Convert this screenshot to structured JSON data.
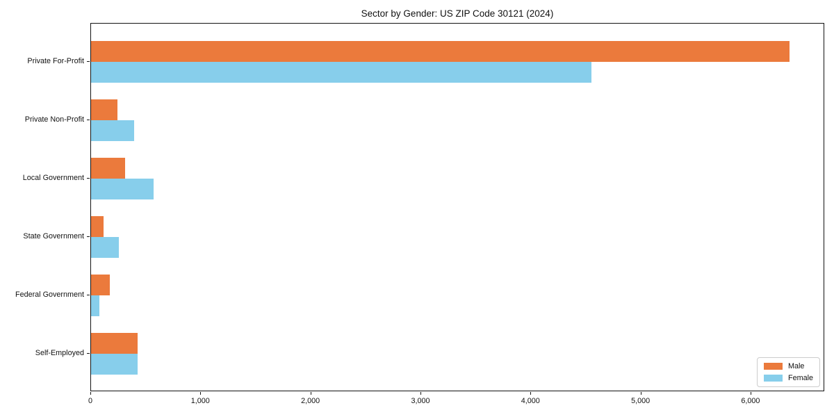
{
  "figure": {
    "background_color": "#ffffff",
    "text_color": "#111111"
  },
  "chart_data": {
    "type": "bar",
    "orientation": "horizontal",
    "title": "Sector by Gender: US ZIP Code 30121 (2024)",
    "categories": [
      "Private For-Profit",
      "Private Non-Profit",
      "Local Government",
      "State Government",
      "Federal Government",
      "Self-Employed"
    ],
    "series": [
      {
        "name": "Male",
        "color": "#EB7A3C",
        "values": [
          6350,
          240,
          310,
          115,
          170,
          420
        ]
      },
      {
        "name": "Female",
        "color": "#87CEEB",
        "values": [
          4550,
          390,
          570,
          255,
          75,
          425
        ]
      }
    ],
    "xlabel": "",
    "ylabel": "",
    "xlim": [
      0,
      6670
    ],
    "x_ticks": [
      0,
      1000,
      2000,
      3000,
      4000,
      5000,
      6000
    ],
    "x_tick_labels": [
      "0",
      "1,000",
      "2,000",
      "3,000",
      "4,000",
      "5,000",
      "6,000"
    ],
    "grid": false,
    "legend_position": "lower right"
  }
}
